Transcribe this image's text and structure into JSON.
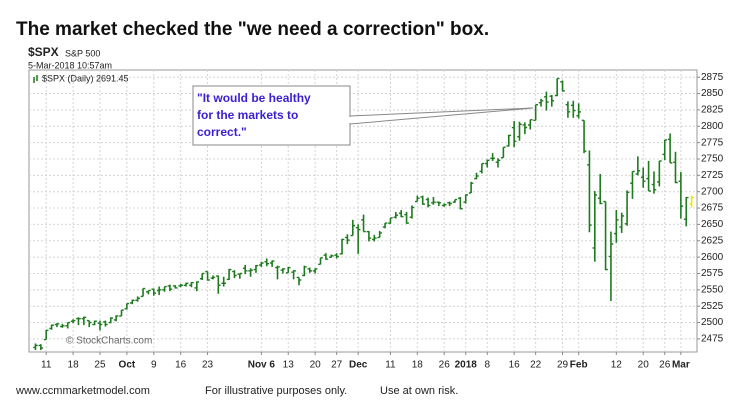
{
  "chart_data": {
    "type": "ohlc",
    "title": "The market checked the \"we need a correction\" box.",
    "symbol": "$SPX",
    "name": "S&P 500",
    "timestamp": "5-Mar-2018 10:57am",
    "legend": "$SPX (Daily) 2691.45",
    "color": "#1e7a1e",
    "last_color": "#f2e600",
    "open": [
      2462,
      2465,
      2474,
      2491,
      2497,
      2494,
      2495,
      2502,
      2506,
      2506,
      2503,
      2497,
      2499,
      2501,
      2500,
      2504,
      2510,
      2521,
      2530,
      2534,
      2540,
      2547,
      2551,
      2549,
      2550,
      2556,
      2556,
      2556,
      2557,
      2557,
      2553,
      2567,
      2578,
      2568,
      2571,
      2560,
      2566,
      2578,
      2574,
      2583,
      2579,
      2581,
      2588,
      2593,
      2591,
      2584,
      2580,
      2576,
      2577,
      2569,
      2572,
      2582,
      2579,
      2589,
      2603,
      2600,
      2603,
      2605,
      2630,
      2633,
      2645,
      2657,
      2639,
      2627,
      2630,
      2646,
      2652,
      2661,
      2667,
      2665,
      2661,
      2685,
      2692,
      2688,
      2683,
      2684,
      2679,
      2683,
      2684,
      2690,
      2684,
      2698,
      2720,
      2731,
      2743,
      2751,
      2745,
      2752,
      2770,
      2798,
      2784,
      2802,
      2802,
      2809,
      2836,
      2845,
      2846,
      2847,
      2868,
      2833,
      2832,
      2816,
      2809,
      2741,
      2614,
      2690,
      2685,
      2601,
      2636,
      2646,
      2651,
      2713,
      2727,
      2722,
      2720,
      2711,
      2715,
      2757,
      2780,
      2745,
      2716,
      2658,
      2681
    ],
    "high": [
      2468,
      2467,
      2489,
      2497,
      2499,
      2498,
      2500,
      2505,
      2508,
      2509,
      2503,
      2503,
      2503,
      2503,
      2508,
      2511,
      2519,
      2529,
      2535,
      2540,
      2552,
      2549,
      2552,
      2555,
      2555,
      2558,
      2557,
      2559,
      2561,
      2562,
      2563,
      2575,
      2578,
      2572,
      2572,
      2570,
      2582,
      2580,
      2575,
      2588,
      2583,
      2588,
      2593,
      2598,
      2595,
      2587,
      2583,
      2585,
      2580,
      2569,
      2587,
      2584,
      2583,
      2599,
      2606,
      2604,
      2606,
      2628,
      2635,
      2657,
      2650,
      2665,
      2640,
      2634,
      2640,
      2652,
      2660,
      2669,
      2672,
      2669,
      2679,
      2694,
      2694,
      2691,
      2692,
      2685,
      2682,
      2685,
      2688,
      2692,
      2696,
      2715,
      2729,
      2743,
      2749,
      2759,
      2751,
      2768,
      2787,
      2808,
      2807,
      2806,
      2810,
      2833,
      2842,
      2853,
      2848,
      2873,
      2870,
      2838,
      2839,
      2835,
      2809,
      2763,
      2701,
      2727,
      2685,
      2639,
      2672,
      2668,
      2702,
      2731,
      2754,
      2737,
      2747,
      2731,
      2747,
      2779,
      2789,
      2761,
      2730,
      2692,
      2694
    ],
    "low": [
      2458,
      2458,
      2474,
      2489,
      2493,
      2492,
      2491,
      2499,
      2496,
      2496,
      2493,
      2496,
      2488,
      2494,
      2499,
      2502,
      2510,
      2520,
      2528,
      2532,
      2540,
      2543,
      2541,
      2542,
      2547,
      2548,
      2552,
      2554,
      2555,
      2554,
      2548,
      2565,
      2564,
      2566,
      2544,
      2555,
      2565,
      2568,
      2567,
      2574,
      2570,
      2576,
      2585,
      2586,
      2585,
      2566,
      2575,
      2576,
      2566,
      2557,
      2571,
      2576,
      2575,
      2589,
      2596,
      2599,
      2598,
      2604,
      2620,
      2633,
      2605,
      2639,
      2624,
      2624,
      2630,
      2644,
      2651,
      2659,
      2661,
      2651,
      2659,
      2685,
      2680,
      2676,
      2680,
      2678,
      2677,
      2678,
      2683,
      2673,
      2682,
      2698,
      2719,
      2728,
      2737,
      2747,
      2737,
      2752,
      2769,
      2768,
      2778,
      2788,
      2795,
      2809,
      2830,
      2824,
      2830,
      2846,
      2853,
      2813,
      2813,
      2812,
      2759,
      2638,
      2593,
      2681,
      2580,
      2533,
      2622,
      2637,
      2648,
      2689,
      2725,
      2706,
      2701,
      2697,
      2708,
      2748,
      2744,
      2713,
      2659,
      2647,
      2676
    ],
    "close": [
      2465,
      2461,
      2488,
      2496,
      2498,
      2495,
      2500,
      2503,
      2506,
      2508,
      2500,
      2502,
      2497,
      2497,
      2507,
      2510,
      2519,
      2529,
      2534,
      2537,
      2552,
      2549,
      2545,
      2550,
      2555,
      2551,
      2553,
      2557,
      2560,
      2561,
      2562,
      2575,
      2565,
      2569,
      2557,
      2560,
      2581,
      2572,
      2575,
      2579,
      2580,
      2587,
      2591,
      2590,
      2594,
      2585,
      2582,
      2584,
      2579,
      2565,
      2585,
      2579,
      2582,
      2599,
      2597,
      2602,
      2601,
      2627,
      2626,
      2648,
      2642,
      2639,
      2629,
      2629,
      2637,
      2652,
      2660,
      2664,
      2662,
      2652,
      2676,
      2690,
      2681,
      2679,
      2684,
      2683,
      2680,
      2682,
      2688,
      2674,
      2695,
      2713,
      2724,
      2743,
      2748,
      2751,
      2748,
      2768,
      2786,
      2777,
      2803,
      2798,
      2810,
      2833,
      2839,
      2837,
      2839,
      2873,
      2854,
      2822,
      2824,
      2822,
      2762,
      2649,
      2695,
      2682,
      2581,
      2620,
      2657,
      2663,
      2699,
      2731,
      2732,
      2716,
      2701,
      2703,
      2747,
      2779,
      2744,
      2714,
      2678,
      2691,
      2691
    ],
    "xlim": [
      -1.2,
      123
    ],
    "xticks": [
      {
        "value": 2,
        "label": "11"
      },
      {
        "value": 7,
        "label": "18"
      },
      {
        "value": 12,
        "label": "25"
      },
      {
        "value": 17,
        "label": "Oct"
      },
      {
        "value": 22,
        "label": "9"
      },
      {
        "value": 27,
        "label": "16"
      },
      {
        "value": 32,
        "label": "23"
      },
      {
        "value": 42,
        "label": "Nov 6"
      },
      {
        "value": 47,
        "label": "13"
      },
      {
        "value": 52,
        "label": "20"
      },
      {
        "value": 56,
        "label": "27"
      },
      {
        "value": 60,
        "label": "Dec"
      },
      {
        "value": 66,
        "label": "11"
      },
      {
        "value": 71,
        "label": "18"
      },
      {
        "value": 76,
        "label": "26"
      },
      {
        "value": 80,
        "label": "2018"
      },
      {
        "value": 84,
        "label": "8"
      },
      {
        "value": 89,
        "label": "16"
      },
      {
        "value": 93,
        "label": "22"
      },
      {
        "value": 98,
        "label": "29"
      },
      {
        "value": 101,
        "label": "Feb"
      },
      {
        "value": 108,
        "label": "12"
      },
      {
        "value": 113,
        "label": "20"
      },
      {
        "value": 117,
        "label": "26"
      },
      {
        "value": 120,
        "label": "Mar"
      }
    ],
    "ylim": [
      2455,
      2886
    ],
    "yticks": [
      2475,
      2500,
      2525,
      2550,
      2575,
      2600,
      2625,
      2650,
      2675,
      2700,
      2725,
      2750,
      2775,
      2800,
      2825,
      2850,
      2875
    ],
    "grid": true,
    "annotation": {
      "lines": [
        "\"It would be healthy",
        "for the markets to",
        "correct.\""
      ]
    },
    "watermark": "© StockCharts.com"
  },
  "footer": [
    "www.ccmmarketmodel.com",
    "For illustrative purposes only.",
    "Use at own risk."
  ]
}
